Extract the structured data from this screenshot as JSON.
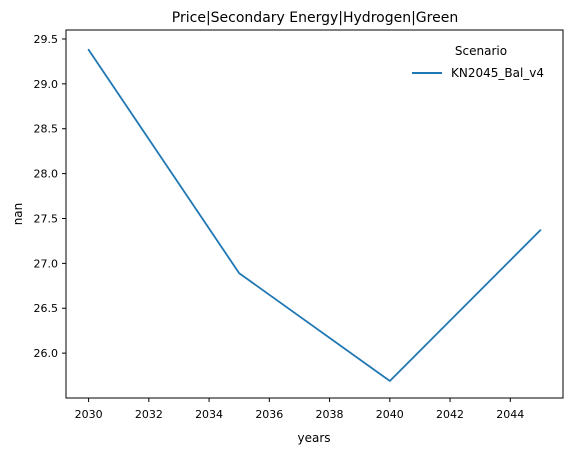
{
  "chart_data": {
    "type": "line",
    "title": "Price|Secondary Energy|Hydrogen|Green",
    "xlabel": "years",
    "ylabel": "nan",
    "x": [
      2030,
      2035,
      2040,
      2045
    ],
    "xticks": [
      "2030",
      "2032",
      "2034",
      "2036",
      "2038",
      "2040",
      "2042",
      "2044"
    ],
    "yticks": [
      "26.0",
      "26.5",
      "27.0",
      "27.5",
      "28.0",
      "28.5",
      "29.0",
      "29.5"
    ],
    "xlim": [
      2029.25,
      2045.75
    ],
    "ylim": [
      25.5,
      29.6
    ],
    "grid": false,
    "legend": {
      "title": "Scenario",
      "placement": "top-right"
    },
    "series": [
      {
        "name": "KN2045_Bal_v4",
        "color": "#1f77b4",
        "values": [
          29.38,
          26.89,
          25.69,
          27.37
        ]
      }
    ]
  }
}
